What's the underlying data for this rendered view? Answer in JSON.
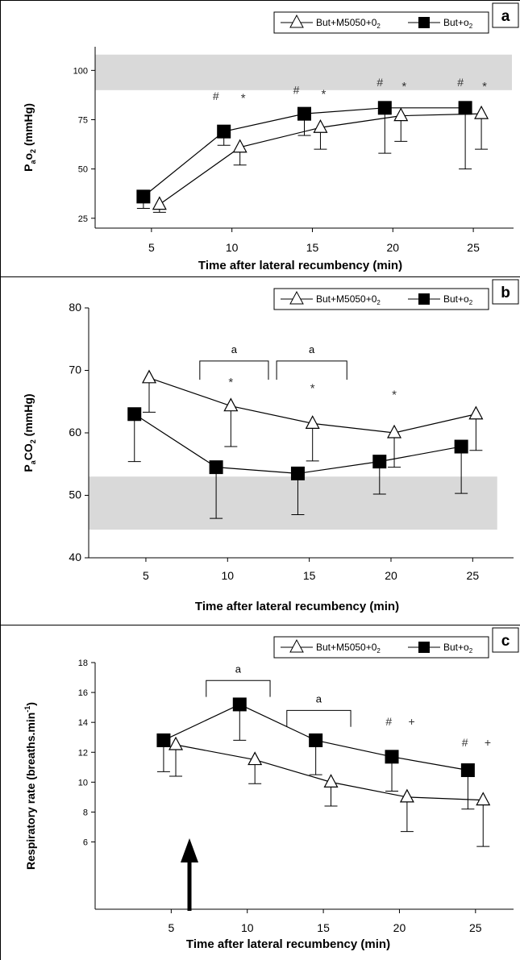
{
  "figure": {
    "xlabel": "Time after lateral recumbency (min)"
  },
  "legend": {
    "series_a_label": "But+M5050+0",
    "series_a_subscript": "2",
    "series_b_label": "But+o",
    "series_b_subscript": "2"
  },
  "colors": {
    "line": "#000000",
    "normal_range_band": "#d9d9d9",
    "but_m5050_marker_fill": "#ffffff",
    "but_o2_marker_fill": "#000000"
  },
  "chart_data": [
    {
      "type": "line",
      "panel_letter": "a",
      "ylabel": {
        "main": "P",
        "sub1": "a",
        "mid": "o",
        "sub2": "2",
        "unit": " (mmHg)"
      },
      "xlabel": "Time after lateral recumbency (min)",
      "x_ticks": [
        5,
        10,
        15,
        20,
        25
      ],
      "y_ticks": [
        25,
        50,
        75,
        100
      ],
      "ylim": [
        20,
        112
      ],
      "xlim": [
        1.5,
        27.5
      ],
      "normal_range_band": [
        90,
        108
      ],
      "series": [
        {
          "name": "But+M5050+0₂",
          "marker": "open-triangle",
          "x": [
            5.5,
            10.5,
            15.5,
            20.5,
            25.5
          ],
          "y": [
            32,
            61,
            71,
            77,
            78
          ],
          "sd": [
            4,
            9,
            11,
            13,
            18
          ]
        },
        {
          "name": "But+o₂",
          "marker": "filled-square",
          "x": [
            4.5,
            9.5,
            14.5,
            19.5,
            24.5
          ],
          "y": [
            36,
            69,
            78,
            81,
            81
          ],
          "sd": [
            6,
            7,
            11,
            23,
            31
          ]
        }
      ],
      "annotations": [
        {
          "text": "#",
          "x": 9.0,
          "y": 85
        },
        {
          "text": "*",
          "x": 10.7,
          "y": 84
        },
        {
          "text": "#",
          "x": 14.0,
          "y": 88
        },
        {
          "text": "*",
          "x": 15.7,
          "y": 86
        },
        {
          "text": "#",
          "x": 19.2,
          "y": 92
        },
        {
          "text": "*",
          "x": 20.7,
          "y": 90
        },
        {
          "text": "#",
          "x": 24.2,
          "y": 92
        },
        {
          "text": "*",
          "x": 25.7,
          "y": 90
        }
      ],
      "brackets": []
    },
    {
      "type": "line",
      "panel_letter": "b",
      "ylabel": {
        "main": "P",
        "sub1": "a",
        "mid": "CO",
        "sub2": "2",
        "unit": " (mmHg)"
      },
      "xlabel": "Time after lateral recumbency (min)",
      "x_ticks": [
        5,
        10,
        15,
        20,
        25
      ],
      "y_ticks": [
        40,
        50,
        60,
        70,
        80
      ],
      "ylim": [
        40,
        80
      ],
      "xlim": [
        1.5,
        27.5
      ],
      "normal_range_band": [
        44.5,
        53
      ],
      "series": [
        {
          "name": "But+M5050+0₂",
          "marker": "open-triangle",
          "x": [
            5.2,
            10.2,
            15.2,
            20.2,
            25.2
          ],
          "y": [
            68.8,
            64.3,
            61.5,
            60.0,
            63.0
          ],
          "sd": [
            5.5,
            6.5,
            6.0,
            5.5,
            5.8
          ]
        },
        {
          "name": "But+o₂",
          "marker": "filled-square",
          "x": [
            4.3,
            9.3,
            14.3,
            19.3,
            24.3
          ],
          "y": [
            63.0,
            54.5,
            53.5,
            55.4,
            57.8
          ],
          "sd": [
            7.6,
            8.2,
            6.6,
            5.2,
            7.5
          ]
        }
      ],
      "annotations": [
        {
          "text": "*",
          "x": 10.2,
          "y": 67.5
        },
        {
          "text": "*",
          "x": 15.2,
          "y": 66.5
        },
        {
          "text": "*",
          "x": 20.2,
          "y": 65.5
        }
      ],
      "brackets": [
        {
          "x1": 8.3,
          "x2": 12.5,
          "y": 71.5,
          "drop": 3.0,
          "text": "a"
        },
        {
          "x1": 13.0,
          "x2": 17.3,
          "y": 71.5,
          "drop": 3.0,
          "text": "a"
        }
      ]
    },
    {
      "type": "line",
      "panel_letter": "c",
      "ylabel": {
        "text": "Respiratory rate (breaths.min",
        "sup": "-1",
        "end": ")"
      },
      "xlabel": "Time after lateral recumbency (min)",
      "x_ticks": [
        5,
        10,
        15,
        20,
        25
      ],
      "y_ticks": [
        6,
        8,
        10,
        12,
        14,
        16,
        18
      ],
      "ylim": [
        1.5,
        18
      ],
      "xlim": [
        0,
        27.5
      ],
      "normal_range_band": null,
      "series": [
        {
          "name": "But+M5050+0₂",
          "marker": "open-triangle",
          "x": [
            5.3,
            10.5,
            15.5,
            20.5,
            25.5
          ],
          "y": [
            12.5,
            11.5,
            10.0,
            9.0,
            8.8
          ],
          "sd": [
            2.1,
            1.6,
            1.6,
            2.3,
            3.1
          ]
        },
        {
          "name": "But+o₂",
          "marker": "filled-square",
          "x": [
            4.5,
            9.5,
            14.5,
            19.5,
            24.5
          ],
          "y": [
            12.8,
            15.2,
            12.8,
            11.7,
            10.8
          ],
          "sd": [
            2.1,
            2.4,
            2.3,
            2.3,
            2.6
          ]
        }
      ],
      "annotations": [
        {
          "text": "#",
          "x": 19.3,
          "y": 13.8
        },
        {
          "text": "+",
          "x": 20.8,
          "y": 13.8
        },
        {
          "text": "#",
          "x": 24.3,
          "y": 12.4
        },
        {
          "text": "+",
          "x": 25.8,
          "y": 12.4
        }
      ],
      "brackets": [
        {
          "x1": 7.3,
          "x2": 11.5,
          "y": 16.8,
          "drop": 1.1,
          "text": "a"
        },
        {
          "x1": 12.6,
          "x2": 16.8,
          "y": 14.8,
          "drop": 1.1,
          "text": "a"
        }
      ],
      "arrow_at_x": 6.2
    }
  ]
}
